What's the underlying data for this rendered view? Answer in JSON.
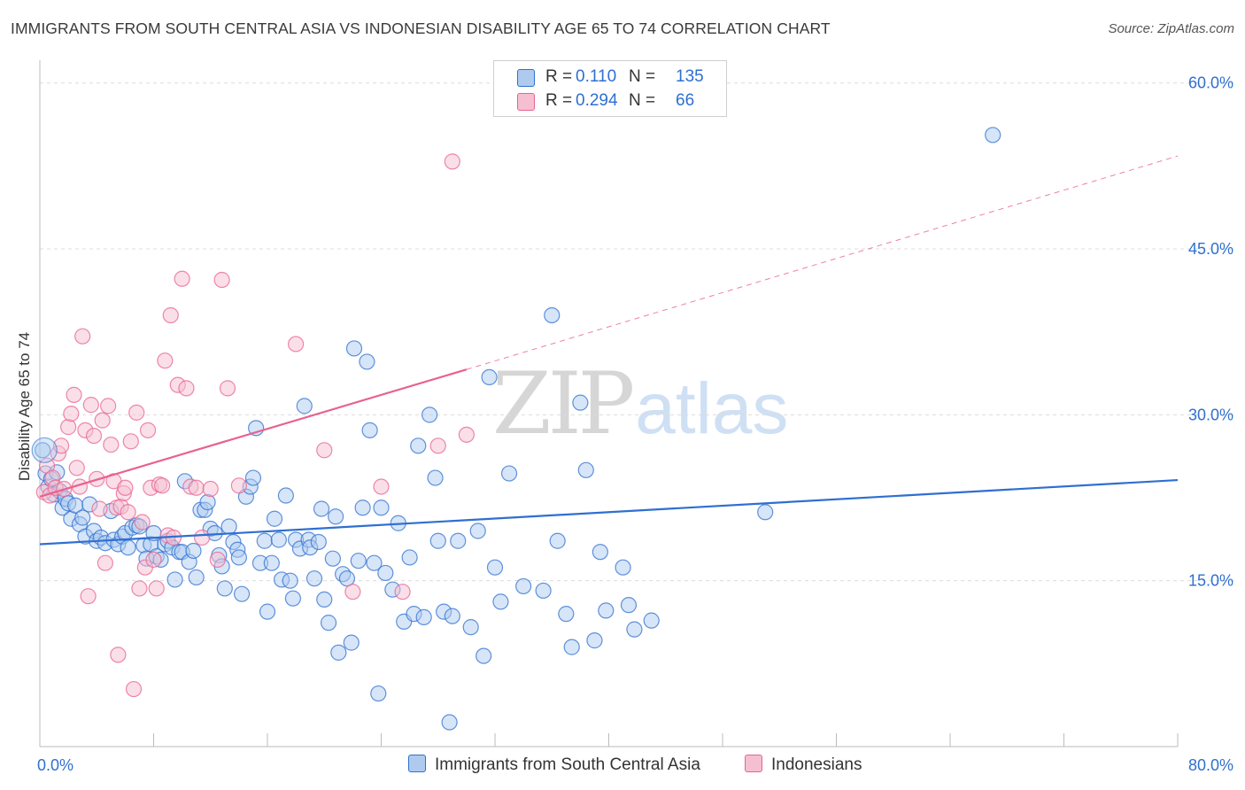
{
  "header": {
    "title": "IMMIGRANTS FROM SOUTH CENTRAL ASIA VS INDONESIAN DISABILITY AGE 65 TO 74 CORRELATION CHART",
    "source": "Source: ZipAtlas.com"
  },
  "legend_box": {
    "rows": [
      {
        "r_label": "R =",
        "r_value": "0.110",
        "n_label": "N =",
        "n_value": "135"
      },
      {
        "r_label": "R =",
        "r_value": "0.294",
        "n_label": "N =",
        "n_value": "66"
      }
    ]
  },
  "watermark": {
    "zip": "ZIP",
    "atlas": "atlas"
  },
  "bottom_legend": {
    "series1": "Immigrants from South Central Asia",
    "series2": "Indonesians"
  },
  "colors": {
    "blue": "#2f6fd0",
    "blue_fill": "#aecbef",
    "pink": "#e8628d",
    "pink_fill": "#f6bfd1",
    "grid": "#dcdcdc",
    "axis_text": "#2f6fd0"
  },
  "chart_data": {
    "type": "scatter",
    "xlabel": "",
    "ylabel": "Disability Age 65 to 74",
    "xlim": [
      0,
      80
    ],
    "ylim": [
      0,
      61.5
    ],
    "x_tick_labels": [
      {
        "value": 0,
        "label": "0.0%"
      },
      {
        "value": 80,
        "label": "80.0%"
      }
    ],
    "y_tick_labels": [
      {
        "value": 15,
        "label": "15.0%"
      },
      {
        "value": 30,
        "label": "30.0%"
      },
      {
        "value": 45,
        "label": "45.0%"
      },
      {
        "value": 60,
        "label": "60.0%"
      }
    ],
    "grid": true,
    "series": [
      {
        "name": "Immigrants from South Central Asia",
        "color": "#2f6fd0",
        "trend": {
          "x": [
            0,
            80
          ],
          "y": [
            18.3,
            24.1
          ],
          "dashed_extension": false
        },
        "points": [
          [
            0.2,
            26.8
          ],
          [
            0.4,
            24.7
          ],
          [
            0.6,
            23.5
          ],
          [
            0.8,
            24.2
          ],
          [
            1.0,
            22.8
          ],
          [
            1.2,
            24.8
          ],
          [
            1.4,
            23.1
          ],
          [
            1.6,
            21.6
          ],
          [
            1.8,
            22.4
          ],
          [
            2.0,
            22.0
          ],
          [
            2.2,
            20.6
          ],
          [
            2.5,
            21.8
          ],
          [
            2.8,
            20.1
          ],
          [
            3.0,
            20.7
          ],
          [
            3.2,
            19.0
          ],
          [
            3.5,
            21.9
          ],
          [
            3.8,
            19.5
          ],
          [
            4.0,
            18.6
          ],
          [
            4.3,
            18.9
          ],
          [
            4.6,
            18.4
          ],
          [
            5.0,
            21.3
          ],
          [
            5.2,
            18.7
          ],
          [
            5.5,
            18.3
          ],
          [
            5.8,
            19.0
          ],
          [
            6.0,
            19.3
          ],
          [
            6.2,
            18.0
          ],
          [
            6.5,
            19.8
          ],
          [
            6.8,
            20.0
          ],
          [
            7.0,
            19.9
          ],
          [
            7.3,
            18.2
          ],
          [
            7.5,
            17.0
          ],
          [
            7.8,
            18.3
          ],
          [
            8.0,
            19.3
          ],
          [
            8.2,
            17.2
          ],
          [
            8.5,
            16.9
          ],
          [
            8.8,
            18.3
          ],
          [
            9.0,
            18.6
          ],
          [
            9.3,
            18.0
          ],
          [
            9.5,
            15.1
          ],
          [
            9.8,
            17.6
          ],
          [
            10.0,
            17.6
          ],
          [
            10.2,
            24.0
          ],
          [
            10.5,
            16.7
          ],
          [
            10.8,
            17.7
          ],
          [
            11.0,
            15.3
          ],
          [
            11.3,
            21.4
          ],
          [
            11.6,
            21.4
          ],
          [
            11.8,
            22.1
          ],
          [
            12.0,
            19.7
          ],
          [
            12.3,
            19.3
          ],
          [
            12.6,
            17.3
          ],
          [
            12.8,
            16.3
          ],
          [
            13.0,
            14.3
          ],
          [
            13.3,
            19.9
          ],
          [
            13.6,
            18.5
          ],
          [
            13.9,
            17.8
          ],
          [
            14.0,
            17.1
          ],
          [
            14.2,
            13.8
          ],
          [
            14.5,
            22.6
          ],
          [
            14.8,
            23.5
          ],
          [
            15.0,
            24.3
          ],
          [
            15.2,
            28.8
          ],
          [
            15.5,
            16.6
          ],
          [
            15.8,
            18.6
          ],
          [
            16.0,
            12.2
          ],
          [
            16.3,
            16.6
          ],
          [
            16.5,
            20.6
          ],
          [
            16.8,
            18.7
          ],
          [
            17.0,
            15.1
          ],
          [
            17.3,
            22.7
          ],
          [
            17.6,
            15.0
          ],
          [
            17.8,
            13.4
          ],
          [
            18.0,
            18.7
          ],
          [
            18.3,
            17.9
          ],
          [
            18.6,
            30.8
          ],
          [
            18.9,
            18.7
          ],
          [
            19.0,
            18.0
          ],
          [
            19.3,
            15.2
          ],
          [
            19.6,
            18.5
          ],
          [
            19.8,
            21.5
          ],
          [
            20.0,
            13.3
          ],
          [
            20.3,
            11.2
          ],
          [
            20.6,
            17.0
          ],
          [
            20.8,
            20.8
          ],
          [
            21.0,
            8.5
          ],
          [
            21.3,
            15.6
          ],
          [
            21.6,
            15.2
          ],
          [
            21.9,
            9.4
          ],
          [
            22.1,
            36.0
          ],
          [
            22.4,
            16.8
          ],
          [
            22.7,
            21.6
          ],
          [
            23.0,
            34.8
          ],
          [
            23.2,
            28.6
          ],
          [
            23.5,
            16.6
          ],
          [
            23.8,
            4.8
          ],
          [
            24.0,
            21.6
          ],
          [
            24.3,
            15.7
          ],
          [
            24.8,
            14.2
          ],
          [
            25.2,
            20.2
          ],
          [
            25.6,
            11.3
          ],
          [
            26.0,
            17.1
          ],
          [
            26.3,
            12.0
          ],
          [
            26.6,
            27.2
          ],
          [
            27.0,
            11.7
          ],
          [
            27.4,
            30.0
          ],
          [
            27.8,
            24.3
          ],
          [
            28.0,
            18.6
          ],
          [
            28.4,
            12.2
          ],
          [
            28.8,
            2.2
          ],
          [
            29.0,
            11.8
          ],
          [
            29.4,
            18.6
          ],
          [
            30.3,
            10.8
          ],
          [
            30.8,
            19.5
          ],
          [
            31.2,
            8.2
          ],
          [
            31.6,
            33.4
          ],
          [
            32.0,
            16.2
          ],
          [
            32.4,
            13.1
          ],
          [
            33.0,
            24.7
          ],
          [
            34.0,
            14.5
          ],
          [
            35.4,
            14.1
          ],
          [
            36.0,
            39.0
          ],
          [
            36.4,
            18.6
          ],
          [
            37.0,
            12.0
          ],
          [
            37.4,
            9.0
          ],
          [
            38.0,
            31.1
          ],
          [
            38.4,
            25.0
          ],
          [
            39.0,
            9.6
          ],
          [
            39.4,
            17.6
          ],
          [
            39.8,
            12.3
          ],
          [
            41.0,
            16.2
          ],
          [
            41.4,
            12.8
          ],
          [
            41.8,
            10.6
          ],
          [
            43.0,
            11.4
          ],
          [
            51.0,
            21.2
          ],
          [
            67.0,
            55.3
          ]
        ]
      },
      {
        "name": "Indonesians",
        "color": "#e8628d",
        "trend": {
          "x": [
            0,
            30
          ],
          "y": [
            22.6,
            34.1
          ],
          "dashed_to": [
            80,
            53.4
          ]
        },
        "points": [
          [
            0.3,
            23.0
          ],
          [
            0.5,
            25.4
          ],
          [
            0.7,
            22.7
          ],
          [
            0.9,
            24.3
          ],
          [
            1.1,
            23.4
          ],
          [
            1.3,
            26.5
          ],
          [
            1.5,
            27.2
          ],
          [
            1.7,
            23.3
          ],
          [
            2.0,
            28.9
          ],
          [
            2.2,
            30.1
          ],
          [
            2.4,
            31.8
          ],
          [
            2.6,
            25.2
          ],
          [
            2.8,
            23.5
          ],
          [
            3.0,
            37.1
          ],
          [
            3.2,
            28.6
          ],
          [
            3.4,
            13.6
          ],
          [
            3.6,
            30.9
          ],
          [
            3.8,
            28.1
          ],
          [
            4.0,
            24.2
          ],
          [
            4.2,
            21.5
          ],
          [
            4.4,
            29.5
          ],
          [
            4.6,
            16.6
          ],
          [
            4.8,
            30.8
          ],
          [
            5.0,
            27.3
          ],
          [
            5.2,
            24.0
          ],
          [
            5.4,
            21.6
          ],
          [
            5.5,
            8.3
          ],
          [
            5.7,
            21.7
          ],
          [
            5.9,
            22.9
          ],
          [
            6.0,
            23.4
          ],
          [
            6.2,
            21.2
          ],
          [
            6.4,
            27.6
          ],
          [
            6.6,
            5.2
          ],
          [
            6.8,
            30.2
          ],
          [
            7.0,
            14.3
          ],
          [
            7.2,
            20.3
          ],
          [
            7.4,
            16.2
          ],
          [
            7.6,
            28.6
          ],
          [
            7.8,
            23.4
          ],
          [
            8.0,
            16.9
          ],
          [
            8.2,
            14.3
          ],
          [
            8.4,
            23.7
          ],
          [
            8.6,
            23.6
          ],
          [
            8.8,
            34.9
          ],
          [
            9.0,
            19.1
          ],
          [
            9.2,
            39.0
          ],
          [
            9.4,
            18.9
          ],
          [
            9.7,
            32.7
          ],
          [
            10.0,
            42.3
          ],
          [
            10.3,
            32.4
          ],
          [
            10.6,
            23.5
          ],
          [
            11.0,
            23.4
          ],
          [
            11.4,
            18.9
          ],
          [
            12.0,
            23.3
          ],
          [
            12.5,
            16.9
          ],
          [
            12.8,
            42.2
          ],
          [
            13.2,
            32.4
          ],
          [
            14.0,
            23.6
          ],
          [
            18.0,
            36.4
          ],
          [
            20.0,
            26.8
          ],
          [
            22.0,
            14.0
          ],
          [
            24.0,
            23.5
          ],
          [
            25.5,
            14.0
          ],
          [
            28.0,
            27.2
          ],
          [
            30.0,
            28.2
          ],
          [
            29.0,
            52.9
          ]
        ]
      }
    ]
  }
}
